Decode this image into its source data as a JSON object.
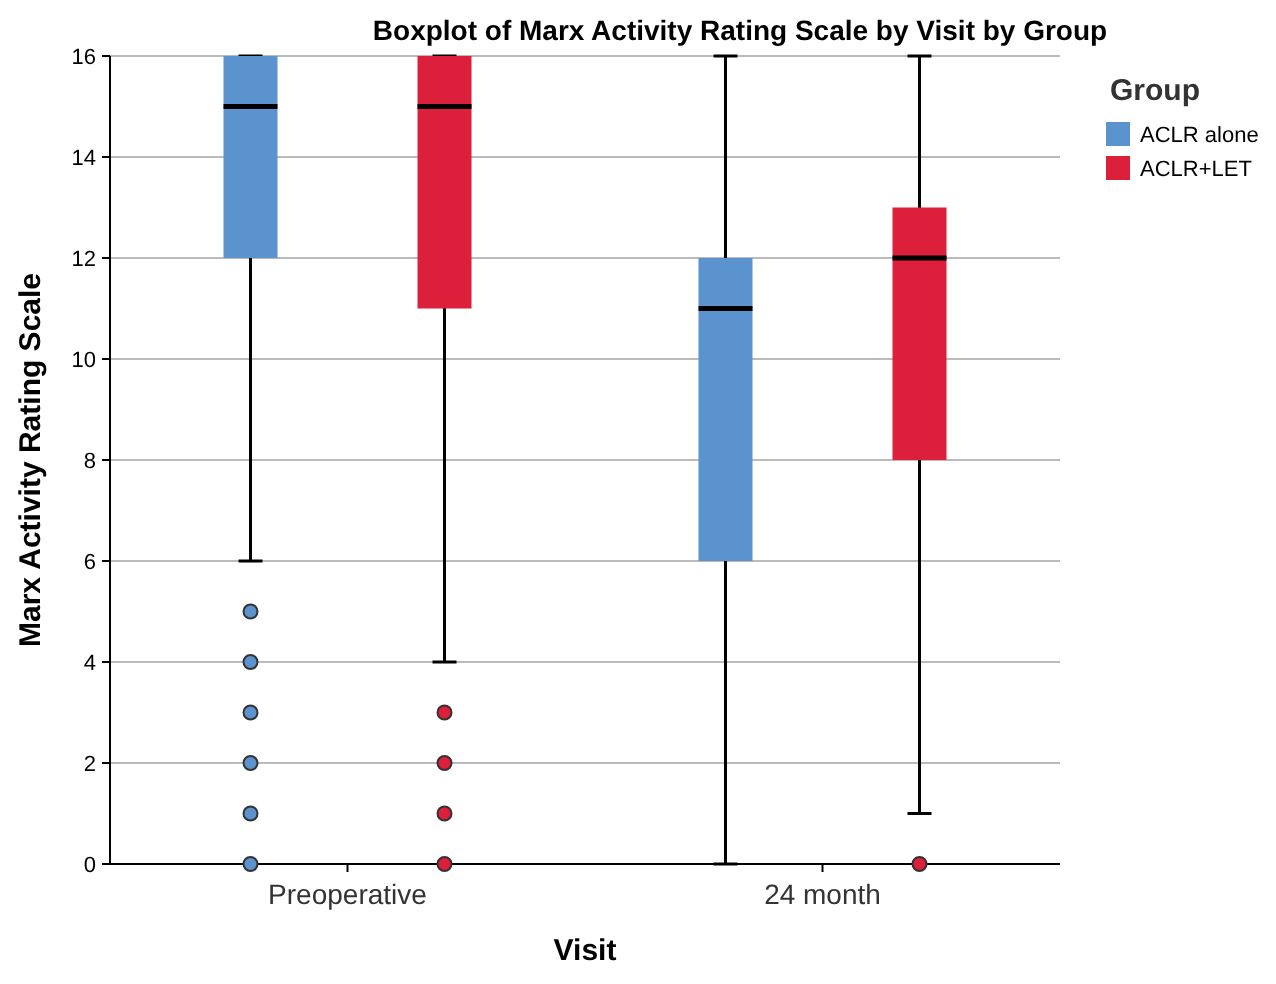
{
  "chart_data": {
    "type": "box",
    "title": "Boxplot of Marx Activity Rating Scale by Visit by Group",
    "xlabel": "Visit",
    "ylabel": "Marx Activity Rating Scale",
    "legend_title": "Group",
    "legend": "top right",
    "grid": "y",
    "categories": [
      "Preoperative",
      "24 month"
    ],
    "ylim": [
      0,
      16
    ],
    "yticks": [
      0,
      2,
      4,
      6,
      8,
      10,
      12,
      14,
      16
    ],
    "series": [
      {
        "name": "ACLR alone",
        "color": "#5b93cf",
        "boxes": [
          {
            "low": 6,
            "q1": 12,
            "median": 15,
            "q3": 16,
            "high": 16,
            "outliers": [
              5,
              4,
              3,
              2,
              1,
              0
            ]
          },
          {
            "low": 0,
            "q1": 6,
            "median": 11,
            "q3": 12,
            "high": 16
          }
        ]
      },
      {
        "name": "ACLR+LET",
        "color": "#dc1f3a",
        "boxes": [
          {
            "low": 4,
            "q1": 11,
            "median": 15,
            "q3": 16,
            "high": 16,
            "outliers": [
              3,
              2,
              1,
              0
            ]
          },
          {
            "low": 1,
            "q1": 8,
            "median": 12,
            "q3": 13,
            "high": 16,
            "outliers": [
              0
            ]
          }
        ]
      }
    ]
  }
}
